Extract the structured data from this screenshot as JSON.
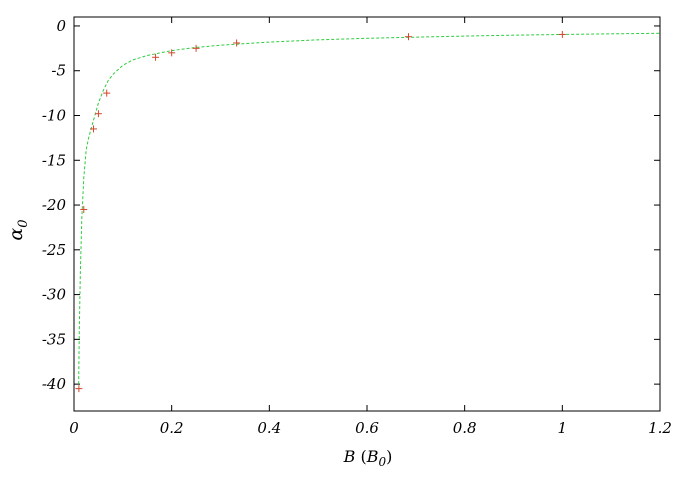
{
  "chart_data": {
    "type": "scatter",
    "title": "",
    "xlabel_main": "B",
    "xlabel_unit_base": "B",
    "xlabel_unit_sub": "0",
    "ylabel_main": "α",
    "ylabel_sub": "0",
    "xlim": [
      0,
      1.2
    ],
    "ylim": [
      -43,
      1
    ],
    "x_ticks": [
      0,
      0.2,
      0.4,
      0.6,
      0.8,
      1.0,
      1.2
    ],
    "x_tick_labels": [
      "0",
      "0.2",
      "0.4",
      "0.6",
      "0.8",
      "1",
      "1.2"
    ],
    "y_ticks": [
      0,
      -5,
      -10,
      -15,
      -20,
      -25,
      -30,
      -35,
      -40
    ],
    "y_tick_labels": [
      "0",
      "-5",
      "-10",
      "-15",
      "-20",
      "-25",
      "-30",
      "-35",
      "-40"
    ],
    "grid": false,
    "legend": "none",
    "points": [
      {
        "x": 0.01,
        "y": -40.5
      },
      {
        "x": 0.02,
        "y": -20.5
      },
      {
        "x": 0.04,
        "y": -11.5
      },
      {
        "x": 0.05,
        "y": -9.8
      },
      {
        "x": 0.067,
        "y": -7.5
      },
      {
        "x": 0.167,
        "y": -3.5
      },
      {
        "x": 0.2,
        "y": -3.0
      },
      {
        "x": 0.25,
        "y": -2.5
      },
      {
        "x": 0.333,
        "y": -1.9
      },
      {
        "x": 0.685,
        "y": -1.2
      },
      {
        "x": 1.0,
        "y": -0.95
      }
    ],
    "fit_curve": {
      "style": "dashed",
      "x": [
        0.0095,
        0.011,
        0.013,
        0.016,
        0.02,
        0.025,
        0.03,
        0.035,
        0.04,
        0.05,
        0.06,
        0.07,
        0.08,
        0.1,
        0.12,
        0.15,
        0.2,
        0.25,
        0.3,
        0.4,
        0.5,
        0.6,
        0.7,
        0.8,
        0.9,
        1.0,
        1.1,
        1.2
      ],
      "y": [
        -40.0,
        -33.5,
        -27.5,
        -21.5,
        -17.0,
        -13.8,
        -12.5,
        -11.5,
        -10.5,
        -8.6,
        -7.2,
        -6.1,
        -5.4,
        -4.4,
        -3.8,
        -3.3,
        -2.75,
        -2.4,
        -2.15,
        -1.8,
        -1.55,
        -1.38,
        -1.25,
        -1.13,
        -1.03,
        -0.95,
        -0.88,
        -0.82
      ]
    },
    "colors": {
      "points": "#d2472b",
      "fit_line": "#2ecc40",
      "axes": "#000000"
    }
  }
}
